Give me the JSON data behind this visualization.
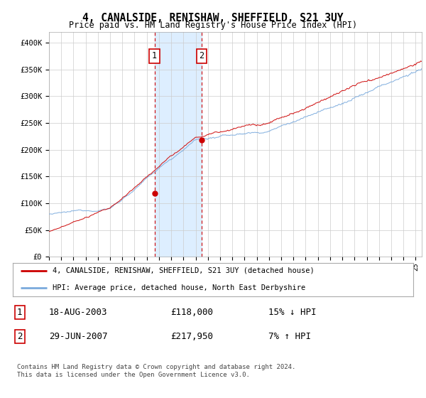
{
  "title": "4, CANALSIDE, RENISHAW, SHEFFIELD, S21 3UY",
  "subtitle": "Price paid vs. HM Land Registry's House Price Index (HPI)",
  "ylabel_ticks": [
    "£0",
    "£50K",
    "£100K",
    "£150K",
    "£200K",
    "£250K",
    "£300K",
    "£350K",
    "£400K"
  ],
  "ylim": [
    0,
    420000
  ],
  "ytick_vals": [
    0,
    50000,
    100000,
    150000,
    200000,
    250000,
    300000,
    350000,
    400000
  ],
  "x_start_year": 1995.0,
  "x_end_year": 2025.5,
  "hpi_color": "#7aaadd",
  "price_color": "#cc0000",
  "shade_color": "#ddeeff",
  "transaction1_date": 2003.63,
  "transaction1_price": 118000,
  "transaction2_date": 2007.49,
  "transaction2_price": 217950,
  "legend_text1": "4, CANALSIDE, RENISHAW, SHEFFIELD, S21 3UY (detached house)",
  "legend_text2": "HPI: Average price, detached house, North East Derbyshire",
  "table_row1_num": "1",
  "table_row1_date": "18-AUG-2003",
  "table_row1_price": "£118,000",
  "table_row1_hpi": "15% ↓ HPI",
  "table_row2_num": "2",
  "table_row2_date": "29-JUN-2007",
  "table_row2_price": "£217,950",
  "table_row2_hpi": "7% ↑ HPI",
  "footer": "Contains HM Land Registry data © Crown copyright and database right 2024.\nThis data is licensed under the Open Government Licence v3.0.",
  "background_color": "#ffffff",
  "noise_seed": 12345,
  "n_points": 366
}
